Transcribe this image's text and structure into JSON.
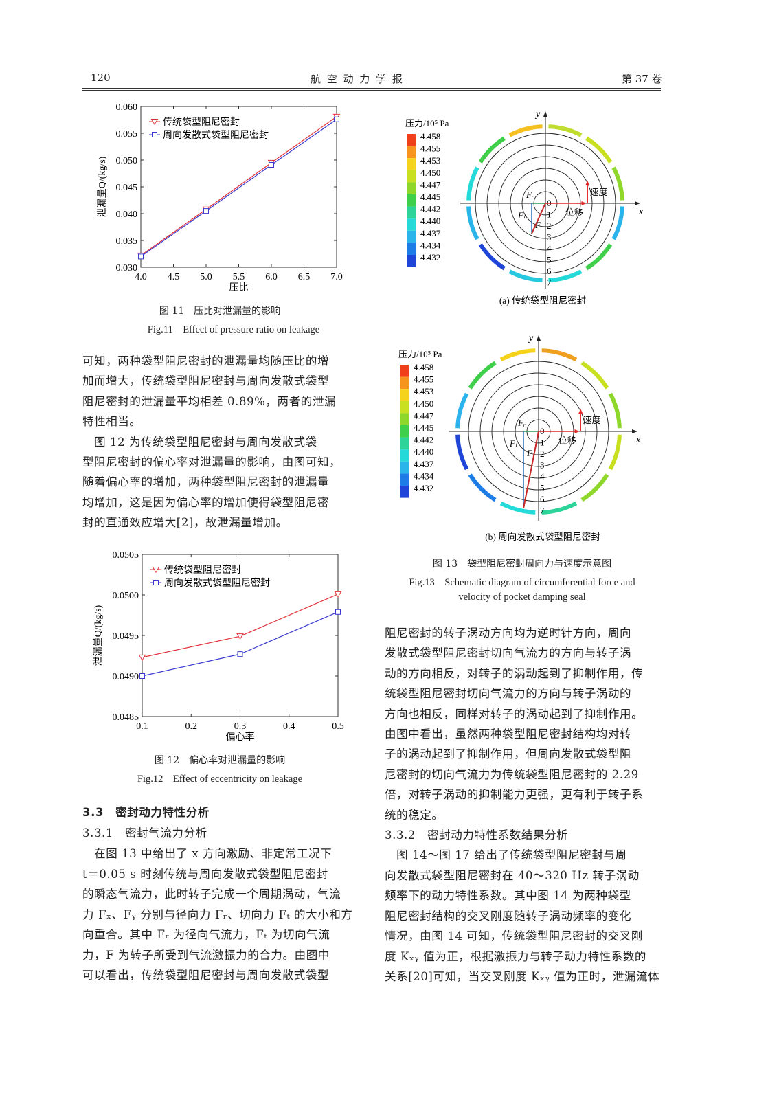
{
  "header": {
    "page_number": "120",
    "journal": "航 空 动 力 学 报",
    "volume": "第 37 卷"
  },
  "fig11": {
    "caption_cn": "图 11　压比对泄漏量的影响",
    "caption_en": "Fig.11　Effect of pressure ratio on leakage"
  },
  "fig12": {
    "caption_cn": "图 12　偏心率对泄漏量的影响",
    "caption_en": "Fig.12　Effect of eccentricity on leakage"
  },
  "fig13": {
    "colorbar_title": "压力/10⁵ Pa",
    "colorbar_levels": [
      "4.458",
      "4.455",
      "4.453",
      "4.450",
      "4.447",
      "4.445",
      "4.442",
      "4.440",
      "4.437",
      "4.434",
      "4.432"
    ],
    "colorbar_colors": [
      "#f0401a",
      "#f7941d",
      "#f5d21c",
      "#c8e020",
      "#8fd82b",
      "#3fcf4a",
      "#2ed39a",
      "#26d9d9",
      "#2bb4ec",
      "#1e7ce6",
      "#1f45d8"
    ],
    "sub_a": "(a) 传统袋型阻尼密封",
    "sub_b": "(b) 周向发散式袋型阻尼密封",
    "axis_x": "x",
    "axis_y": "y",
    "velocity": "速度",
    "displacement": "位移",
    "Fr": "Fᵣ",
    "Ft": "Fₜ",
    "F": "F",
    "ring_labels": [
      "0",
      "1",
      "2",
      "3",
      "4",
      "5",
      "6",
      "7"
    ],
    "caption_cn": "图 13　袋型阻尼密封周向力与速度示意图",
    "caption_en_1": "Fig.13　Schematic diagram of circumferential force and",
    "caption_en_2": "velocity of pocket damping seal"
  },
  "chart_data": [
    {
      "type": "line",
      "title": "",
      "xlabel": "压比",
      "ylabel": "泄漏量Q/(kg/s)",
      "xlim": [
        4.0,
        7.0
      ],
      "ylim": [
        0.03,
        0.06
      ],
      "xticks": [
        "4.0",
        "4.5",
        "5.0",
        "5.5",
        "6.0",
        "6.5",
        "7.0"
      ],
      "yticks": [
        "0.030",
        "0.035",
        "0.040",
        "0.045",
        "0.050",
        "0.055",
        "0.060"
      ],
      "x": [
        4.0,
        5.0,
        6.0,
        7.0
      ],
      "legend_position": "top-left",
      "series": [
        {
          "name": "传统袋型阻尼密封",
          "color": "#e0303a",
          "marker": "triangle-down",
          "values": [
            0.0322,
            0.0408,
            0.0495,
            0.0581
          ]
        },
        {
          "name": "周向发散式袋型阻尼密封",
          "color": "#3a3ad0",
          "marker": "square",
          "values": [
            0.032,
            0.0405,
            0.0491,
            0.0576
          ]
        }
      ]
    },
    {
      "type": "line",
      "title": "",
      "xlabel": "偏心率",
      "ylabel": "泄漏量Q/(kg/s)",
      "xlim": [
        0.1,
        0.5
      ],
      "ylim": [
        0.0485,
        0.0505
      ],
      "xticks": [
        "0.1",
        "0.2",
        "0.3",
        "0.4",
        "0.5"
      ],
      "yticks": [
        "0.0485",
        "0.0490",
        "0.0495",
        "0.0500",
        "0.0505"
      ],
      "x": [
        0.1,
        0.3,
        0.5
      ],
      "legend_position": "top-left",
      "series": [
        {
          "name": "传统袋型阻尼密封",
          "color": "#e0303a",
          "marker": "triangle-down",
          "values": [
            0.04923,
            0.04949,
            0.05001
          ]
        },
        {
          "name": "周向发散式袋型阻尼密封",
          "color": "#3a3ad0",
          "marker": "square",
          "values": [
            0.049,
            0.04927,
            0.04979
          ]
        }
      ]
    }
  ],
  "left_text": {
    "p1": [
      "可知，两种袋型阻尼密封的泄漏量均随压比的增",
      "加而增大，传统袋型阻尼密封与周向发散式袋型",
      "阻尼密封的泄漏量平均相差 0.89%，两者的泄漏",
      "特性相当。"
    ],
    "p2": [
      "　图 12 为传统袋型阻尼密封与周向发散式袋",
      "型阻尼密封的偏心率对泄漏量的影响，由图可知，",
      "随着偏心率的增加，两种袋型阻尼密封的泄漏量",
      "均增加，这是因为偏心率的增加使得袋型阻尼密",
      "封的直通效应增大[2]，故泄漏量增加。"
    ],
    "section": "3.3　密封动力特性分析",
    "subsection": "3.3.1　密封气流力分析",
    "p3": [
      "　在图 13 中给出了 x 方向激励、非定常工况下",
      "t＝0.05 s 时刻传统与周向发散式袋型阻尼密封",
      "的瞬态气流力，此时转子完成一个周期涡动，气流",
      "力 Fₓ、Fᵧ 分别与径向力 Fᵣ、切向力 Fₜ 的大小和方",
      "向重合。其中 Fᵣ 为径向气流力，Fₜ 为切向气流",
      "力，F 为转子所受到气流激振力的合力。由图中",
      "可以看出，传统袋型阻尼密封与周向发散式袋型"
    ]
  },
  "right_text": {
    "p1": [
      "阻尼密封的转子涡动方向均为逆时针方向，周向",
      "发散式袋型阻尼密封切向气流力的方向与转子涡",
      "动的方向相反，对转子的涡动起到了抑制作用，传",
      "统袋型阻尼密封切向气流力的方向与转子涡动的",
      "方向也相反，同样对转子的涡动起到了抑制作用。",
      "由图中看出，虽然两种袋型阻尼密封结构均对转",
      "子的涡动起到了抑制作用，但周向发散式袋型阻",
      "尼密封的切向气流力为传统袋型阻尼密封的 2.29",
      "倍，对转子涡动的抑制能力更强，更有利于转子系",
      "统的稳定。"
    ],
    "subsection": "3.3.2　密封动力特性系数结果分析",
    "p2": [
      "　图 14～图 17 给出了传统袋型阻尼密封与周",
      "向发散式袋型阻尼密封在 40～320 Hz 转子涡动",
      "频率下的动力特性系数。其中图 14 为两种袋型",
      "阻尼密封结构的交叉刚度随转子涡动频率的变化",
      "情况，由图 14 可知，传统袋型阻尼密封的交叉刚",
      "度 Kₓᵧ 值为正，根据激振力与转子动力特性系数的",
      "关系[20]可知，当交叉刚度 Kₓᵧ 值为正时，泄漏流体"
    ]
  }
}
